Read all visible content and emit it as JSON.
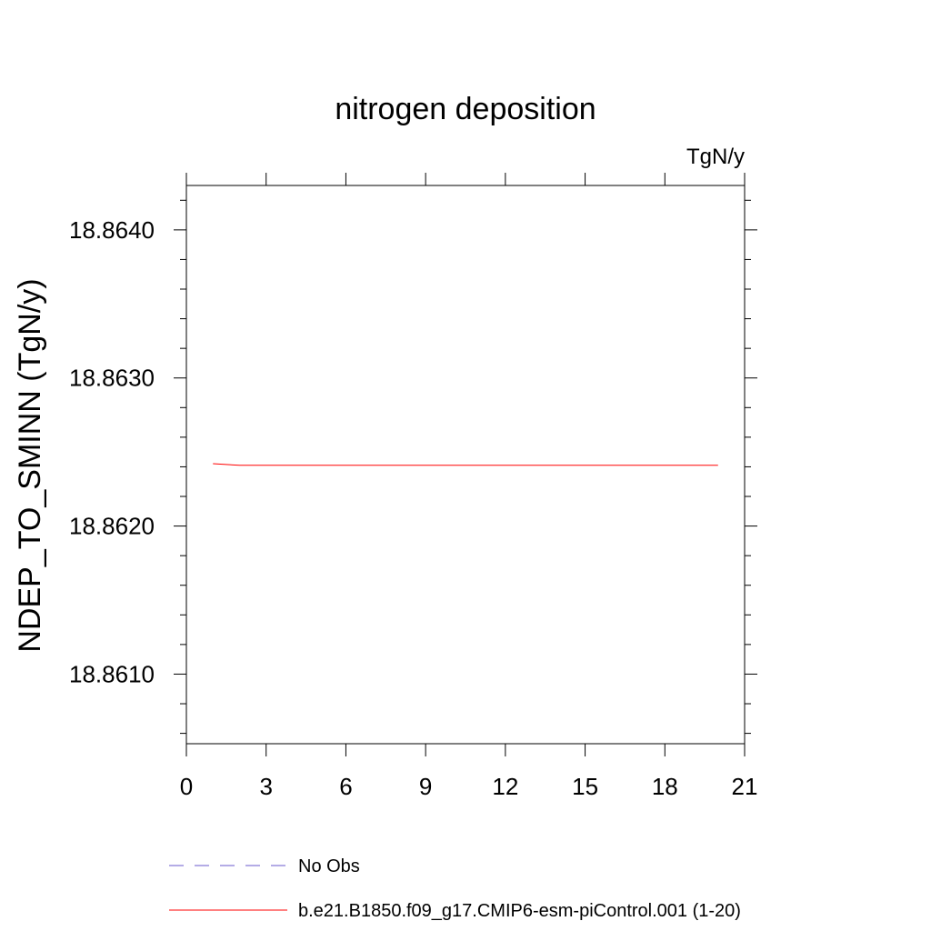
{
  "chart_data": {
    "type": "line",
    "title": "nitrogen deposition",
    "units": "TgN/y",
    "xlabel": "",
    "ylabel": "NDEP_TO_SMINN  (TgN/y)",
    "xlim": [
      0,
      21
    ],
    "ylim": [
      18.86053,
      18.8643
    ],
    "x_ticks": [
      0,
      3,
      6,
      9,
      12,
      15,
      18,
      21
    ],
    "y_ticks": [
      18.861,
      18.862,
      18.863,
      18.864
    ],
    "y_tick_labels": [
      "18.8610",
      "18.8620",
      "18.8630",
      "18.8640"
    ],
    "series": [
      {
        "name": "b.e21.B1850.f09_g17.CMIP6-esm-piControl.001 (1-20)",
        "color": "#ff0000",
        "style": "solid",
        "x": [
          1,
          2,
          3,
          4,
          5,
          6,
          7,
          8,
          9,
          10,
          11,
          12,
          13,
          14,
          15,
          16,
          17,
          18,
          19,
          20
        ],
        "y": [
          18.862421,
          18.86241,
          18.86241,
          18.86241,
          18.86241,
          18.86241,
          18.86241,
          18.86241,
          18.86241,
          18.86241,
          18.86241,
          18.86241,
          18.86241,
          18.86241,
          18.86241,
          18.86241,
          18.86241,
          18.86241,
          18.86241,
          18.86241
        ]
      }
    ],
    "legend": [
      {
        "label": "No Obs",
        "color": "#6a5acd",
        "style": "dashed"
      },
      {
        "label": "b.e21.B1850.f09_g17.CMIP6-esm-piControl.001 (1-20)",
        "color": "#ff0000",
        "style": "solid"
      }
    ],
    "legend_position": "bottom",
    "grid": false
  }
}
